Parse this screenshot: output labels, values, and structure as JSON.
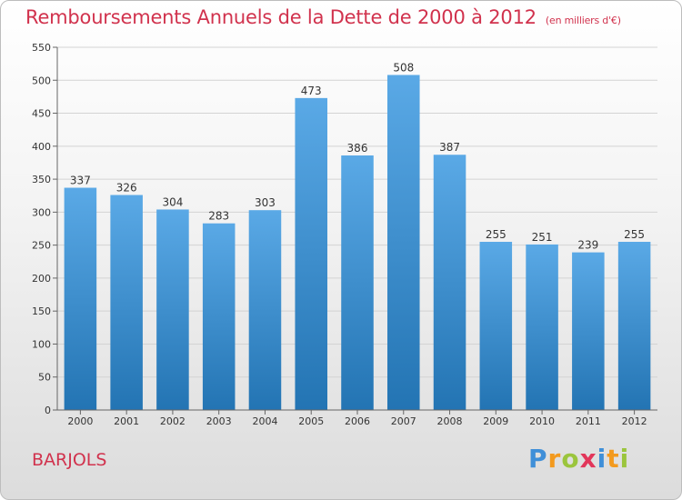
{
  "header": {
    "title": "Remboursements Annuels de la Dette de 2000 à 2012",
    "unit": "(en milliers d'€)"
  },
  "footer": {
    "city": "BARJOLS",
    "logo_text": "Proxiti",
    "logo_letters": [
      "P",
      "r",
      "o",
      "x",
      "i",
      "t",
      "i"
    ]
  },
  "colors": {
    "title": "#d1324d",
    "bar_top": "#5aa9e6",
    "bar_bottom": "#2374b3"
  },
  "chart_data": {
    "type": "bar",
    "title": "Remboursements Annuels de la Dette de 2000 à 2012",
    "categories": [
      "2000",
      "2001",
      "2002",
      "2003",
      "2004",
      "2005",
      "2006",
      "2007",
      "2008",
      "2009",
      "2010",
      "2011",
      "2012"
    ],
    "values": [
      337,
      326,
      304,
      283,
      303,
      473,
      386,
      508,
      387,
      255,
      251,
      239,
      255
    ],
    "data_labels": [
      "337",
      "326",
      "304",
      "283",
      "303",
      "473",
      "386",
      "508",
      "387",
      "255",
      "251",
      "239",
      "255"
    ],
    "yticks": [
      "0",
      "50",
      "100",
      "150",
      "200",
      "250",
      "300",
      "350",
      "400",
      "450",
      "500",
      "550"
    ],
    "ylim": [
      0,
      550
    ],
    "xlabel": "",
    "ylabel": "",
    "grid": true,
    "legend": "none"
  }
}
